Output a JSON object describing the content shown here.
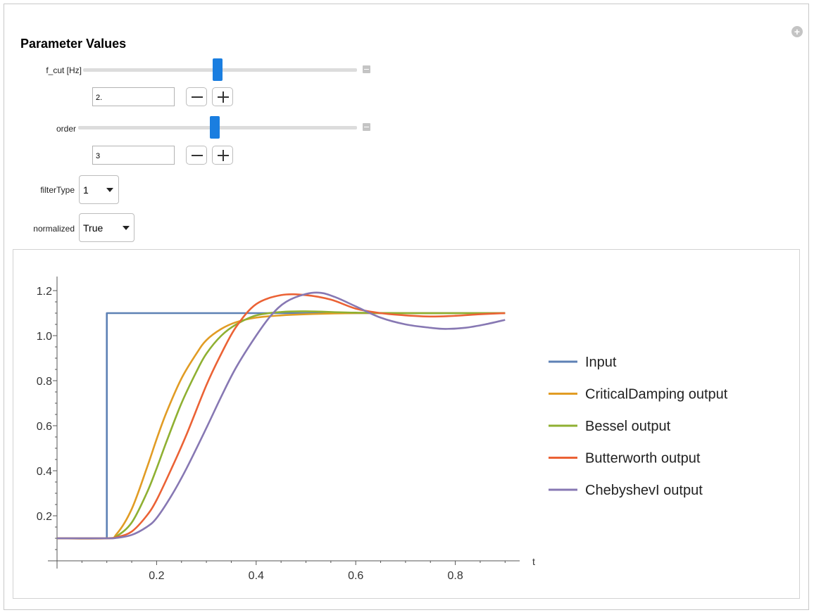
{
  "controls": {
    "title": "Parameter Values",
    "f_cut": {
      "label": "f_cut [Hz]",
      "value": "2.",
      "slider_fraction": 0.49
    },
    "order": {
      "label": "order",
      "value": "3",
      "slider_fraction": 0.49
    },
    "filterType": {
      "label": "filterType",
      "value": "1"
    },
    "normalized": {
      "label": "normalized",
      "value": "True"
    }
  },
  "icons": {
    "add": "plus-circle-icon",
    "collapse": "minus-square-icon",
    "decrement": "minus-icon",
    "increment": "plus-icon",
    "dropdown": "caret-down-icon"
  },
  "chart_data": {
    "type": "line",
    "title": "",
    "xlabel": "t",
    "ylabel": "",
    "xlim": [
      0,
      0.9
    ],
    "ylim": [
      0,
      1.25
    ],
    "xticks": [
      "0.2",
      "0.4",
      "0.6",
      "0.8"
    ],
    "yticks": [
      "0.2",
      "0.4",
      "0.6",
      "0.8",
      "1.0",
      "1.2"
    ],
    "grid": false,
    "legend_position": "right",
    "series": [
      {
        "name": "Input",
        "color": "#5e81b5",
        "x": [
          0,
          0.1,
          0.1,
          0.9
        ],
        "y": [
          0.1,
          0.1,
          1.1,
          1.1
        ]
      },
      {
        "name": "CriticalDamping output",
        "color": "#e19c24",
        "x": [
          0,
          0.1,
          0.12,
          0.15,
          0.18,
          0.2,
          0.22,
          0.25,
          0.28,
          0.3,
          0.33,
          0.36,
          0.4,
          0.45,
          0.5,
          0.6,
          0.7,
          0.8,
          0.9
        ],
        "y": [
          0.1,
          0.1,
          0.12,
          0.23,
          0.41,
          0.54,
          0.66,
          0.81,
          0.92,
          0.98,
          1.03,
          1.06,
          1.08,
          1.09,
          1.095,
          1.1,
          1.1,
          1.1,
          1.1
        ]
      },
      {
        "name": "Bessel output",
        "color": "#8fb032",
        "x": [
          0,
          0.1,
          0.12,
          0.15,
          0.18,
          0.2,
          0.22,
          0.25,
          0.28,
          0.3,
          0.33,
          0.36,
          0.4,
          0.45,
          0.5,
          0.6,
          0.7,
          0.8,
          0.9
        ],
        "y": [
          0.1,
          0.1,
          0.11,
          0.17,
          0.3,
          0.41,
          0.53,
          0.7,
          0.84,
          0.92,
          1.0,
          1.05,
          1.09,
          1.105,
          1.108,
          1.102,
          1.1,
          1.1,
          1.1
        ]
      },
      {
        "name": "Butterworth output",
        "color": "#eb6235",
        "x": [
          0,
          0.1,
          0.12,
          0.15,
          0.18,
          0.2,
          0.23,
          0.26,
          0.3,
          0.33,
          0.36,
          0.4,
          0.45,
          0.5,
          0.55,
          0.6,
          0.65,
          0.7,
          0.75,
          0.8,
          0.85,
          0.9
        ],
        "y": [
          0.1,
          0.1,
          0.105,
          0.13,
          0.2,
          0.27,
          0.41,
          0.56,
          0.78,
          0.92,
          1.04,
          1.14,
          1.18,
          1.18,
          1.16,
          1.12,
          1.1,
          1.09,
          1.085,
          1.088,
          1.095,
          1.1
        ]
      },
      {
        "name": "ChebyshevI output",
        "color": "#8778b3",
        "x": [
          0,
          0.1,
          0.12,
          0.15,
          0.18,
          0.2,
          0.23,
          0.26,
          0.3,
          0.33,
          0.36,
          0.4,
          0.43,
          0.46,
          0.5,
          0.53,
          0.56,
          0.6,
          0.65,
          0.7,
          0.75,
          0.78,
          0.82,
          0.86,
          0.9
        ],
        "y": [
          0.1,
          0.1,
          0.102,
          0.115,
          0.15,
          0.19,
          0.29,
          0.41,
          0.59,
          0.73,
          0.86,
          1.0,
          1.09,
          1.15,
          1.185,
          1.19,
          1.17,
          1.13,
          1.08,
          1.05,
          1.035,
          1.03,
          1.035,
          1.05,
          1.07
        ]
      }
    ]
  }
}
